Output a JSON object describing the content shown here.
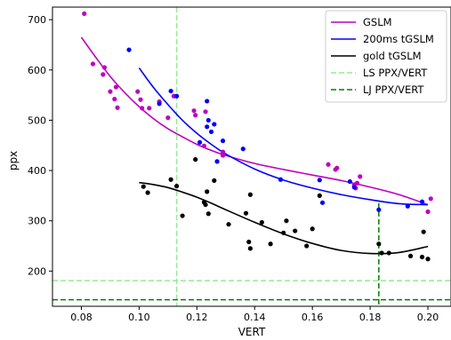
{
  "chart_data": {
    "type": "scatter",
    "title": "",
    "xlabel": "VERT",
    "ylabel": "ppx",
    "xlim": [
      0.07,
      0.208
    ],
    "ylim": [
      130,
      725
    ],
    "xticks": [
      0.08,
      0.1,
      0.12,
      0.14,
      0.16,
      0.18,
      0.2
    ],
    "xtick_labels": [
      "0.08",
      "0.10",
      "0.12",
      "0.14",
      "0.16",
      "0.18",
      "0.20"
    ],
    "yticks": [
      200,
      300,
      400,
      500,
      600,
      700
    ],
    "ytick_labels": [
      "200",
      "300",
      "400",
      "500",
      "600",
      "700"
    ],
    "grid": false,
    "legend_position": "top-right",
    "legend": [
      {
        "label": "GSLM",
        "style": "line",
        "color": "#bf00bf"
      },
      {
        "label": "200ms tGSLM",
        "style": "line",
        "color": "#0000ff"
      },
      {
        "label": "gold tGSLM",
        "style": "line",
        "color": "#000000"
      },
      {
        "label": "LS PPX/VERT",
        "style": "dashed",
        "color": "#90ee90"
      },
      {
        "label": "LJ PPX/VERT",
        "style": "dashed",
        "color": "#008000"
      }
    ],
    "scatter_series": [
      {
        "color": "#bf00bf",
        "points": [
          [
            0.081,
            712
          ],
          [
            0.084,
            612
          ],
          [
            0.0875,
            591
          ],
          [
            0.088,
            605
          ],
          [
            0.09,
            557
          ],
          [
            0.0915,
            542
          ],
          [
            0.092,
            566
          ],
          [
            0.0925,
            525
          ],
          [
            0.0995,
            557
          ],
          [
            0.1005,
            541
          ],
          [
            0.101,
            524
          ],
          [
            0.1035,
            524
          ],
          [
            0.107,
            537
          ],
          [
            0.11,
            505
          ],
          [
            0.112,
            548
          ],
          [
            0.119,
            519
          ],
          [
            0.1195,
            510
          ],
          [
            0.1225,
            449
          ],
          [
            0.123,
            517
          ],
          [
            0.129,
            430
          ],
          [
            0.129,
            437
          ],
          [
            0.1655,
            412
          ],
          [
            0.168,
            402
          ],
          [
            0.1685,
            405
          ],
          [
            0.1745,
            372
          ],
          [
            0.175,
            365
          ],
          [
            0.1755,
            375
          ],
          [
            0.1765,
            388
          ],
          [
            0.2,
            318
          ],
          [
            0.201,
            344
          ]
        ]
      },
      {
        "color": "#0000ff",
        "points": [
          [
            0.0965,
            640
          ],
          [
            0.107,
            533
          ],
          [
            0.111,
            558
          ],
          [
            0.113,
            548
          ],
          [
            0.121,
            456
          ],
          [
            0.1235,
            538
          ],
          [
            0.1235,
            487
          ],
          [
            0.124,
            500
          ],
          [
            0.125,
            477
          ],
          [
            0.126,
            492
          ],
          [
            0.127,
            418
          ],
          [
            0.129,
            459
          ],
          [
            0.136,
            443
          ],
          [
            0.149,
            382
          ],
          [
            0.1625,
            381
          ],
          [
            0.1635,
            336
          ],
          [
            0.173,
            378
          ],
          [
            0.1745,
            367
          ],
          [
            0.183,
            322
          ],
          [
            0.193,
            329
          ],
          [
            0.198,
            338
          ]
        ]
      },
      {
        "color": "#000000",
        "points": [
          [
            0.1015,
            368
          ],
          [
            0.103,
            356
          ],
          [
            0.111,
            382
          ],
          [
            0.113,
            369
          ],
          [
            0.115,
            310
          ],
          [
            0.1195,
            422
          ],
          [
            0.1225,
            337
          ],
          [
            0.123,
            332
          ],
          [
            0.1235,
            358
          ],
          [
            0.124,
            314
          ],
          [
            0.126,
            380
          ],
          [
            0.131,
            293
          ],
          [
            0.137,
            315
          ],
          [
            0.138,
            258
          ],
          [
            0.1385,
            245
          ],
          [
            0.1385,
            352
          ],
          [
            0.1425,
            297
          ],
          [
            0.1455,
            254
          ],
          [
            0.15,
            276
          ],
          [
            0.151,
            300
          ],
          [
            0.154,
            280
          ],
          [
            0.158,
            250
          ],
          [
            0.16,
            284
          ],
          [
            0.1625,
            350
          ],
          [
            0.183,
            254
          ],
          [
            0.184,
            236
          ],
          [
            0.1865,
            236
          ],
          [
            0.194,
            230
          ],
          [
            0.198,
            228
          ],
          [
            0.1985,
            278
          ],
          [
            0.2,
            224
          ]
        ]
      }
    ],
    "curves": [
      {
        "name": "GSLM",
        "color": "#bf00bf",
        "points": [
          [
            0.08,
            665
          ],
          [
            0.085,
            625
          ],
          [
            0.09,
            587
          ],
          [
            0.095,
            555
          ],
          [
            0.1,
            527
          ],
          [
            0.105,
            503
          ],
          [
            0.11,
            483
          ],
          [
            0.115,
            467
          ],
          [
            0.12,
            452
          ],
          [
            0.125,
            440
          ],
          [
            0.13,
            430
          ],
          [
            0.14,
            414
          ],
          [
            0.15,
            402
          ],
          [
            0.16,
            391
          ],
          [
            0.17,
            380
          ],
          [
            0.18,
            367
          ],
          [
            0.19,
            352
          ],
          [
            0.2,
            332
          ]
        ]
      },
      {
        "name": "200ms tGSLM",
        "color": "#0000ff",
        "points": [
          [
            0.1,
            604
          ],
          [
            0.105,
            565
          ],
          [
            0.11,
            531
          ],
          [
            0.115,
            500
          ],
          [
            0.12,
            474
          ],
          [
            0.125,
            452
          ],
          [
            0.13,
            433
          ],
          [
            0.14,
            403
          ],
          [
            0.15,
            381
          ],
          [
            0.16,
            365
          ],
          [
            0.17,
            352
          ],
          [
            0.18,
            342
          ],
          [
            0.19,
            334
          ],
          [
            0.2,
            332
          ]
        ]
      },
      {
        "name": "gold tGSLM",
        "color": "#000000",
        "points": [
          [
            0.1,
            376
          ],
          [
            0.105,
            372
          ],
          [
            0.11,
            366
          ],
          [
            0.115,
            357
          ],
          [
            0.12,
            347
          ],
          [
            0.125,
            335
          ],
          [
            0.13,
            322
          ],
          [
            0.14,
            297
          ],
          [
            0.15,
            274
          ],
          [
            0.16,
            255
          ],
          [
            0.17,
            241
          ],
          [
            0.18,
            235
          ],
          [
            0.19,
            237
          ],
          [
            0.2,
            249
          ]
        ]
      }
    ],
    "reference_lines": [
      {
        "name": "LS PPX/VERT",
        "color": "#90ee90",
        "vertical_x": 0.113,
        "horizontal_y": 181
      },
      {
        "name": "LJ PPX/VERT",
        "color": "#008000",
        "vertical_x": 0.183,
        "vertical_y_max": 335,
        "horizontal_y": 143
      }
    ]
  }
}
